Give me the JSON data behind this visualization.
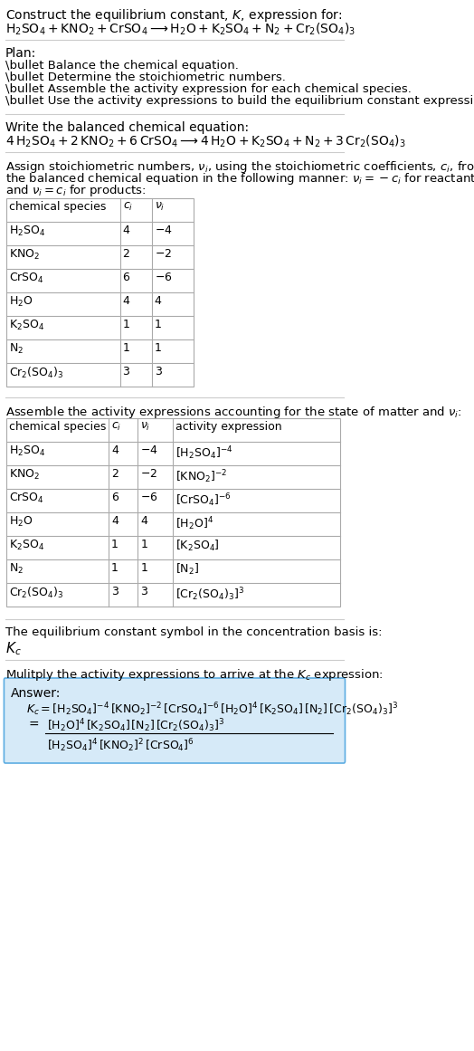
{
  "title_line1": "Construct the equilibrium constant, $K$, expression for:",
  "reaction_unbalanced": "$\\text{H}_2\\text{SO}_4 + \\text{KNO}_2 + \\text{CrSO}_4 \\longrightarrow \\text{H}_2\\text{O} + \\text{K}_2\\text{SO}_4 + \\text{N}_2 + \\text{Cr}_2(\\text{SO}_4)_3$",
  "plan_header": "Plan:",
  "plan_items": [
    "\\bullet Balance the chemical equation.",
    "\\bullet Determine the stoichiometric numbers.",
    "\\bullet Assemble the activity expression for each chemical species.",
    "\\bullet Use the activity expressions to build the equilibrium constant expression."
  ],
  "balanced_header": "Write the balanced chemical equation:",
  "reaction_balanced": "$4\\,\\text{H}_2\\text{SO}_4 + 2\\,\\text{KNO}_2 + 6\\,\\text{CrSO}_4 \\longrightarrow 4\\,\\text{H}_2\\text{O} + \\text{K}_2\\text{SO}_4 + \\text{N}_2 + 3\\,\\text{Cr}_2(\\text{SO}_4)_3$",
  "stoich_intro": "Assign stoichiometric numbers, $\\nu_i$, using the stoichiometric coefficients, $c_i$, from\nthe balanced chemical equation in the following manner: $\\nu_i = -c_i$ for reactants\nand $\\nu_i = c_i$ for products:",
  "table1_headers": [
    "chemical species",
    "$c_i$",
    "$\\nu_i$"
  ],
  "table1_rows": [
    [
      "$\\text{H}_2\\text{SO}_4$",
      "4",
      "$-4$"
    ],
    [
      "$\\text{KNO}_2$",
      "2",
      "$-2$"
    ],
    [
      "$\\text{CrSO}_4$",
      "6",
      "$-6$"
    ],
    [
      "$\\text{H}_2\\text{O}$",
      "4",
      "4"
    ],
    [
      "$\\text{K}_2\\text{SO}_4$",
      "1",
      "1"
    ],
    [
      "$\\text{N}_2$",
      "1",
      "1"
    ],
    [
      "$\\text{Cr}_2(\\text{SO}_4)_3$",
      "3",
      "3"
    ]
  ],
  "activity_intro": "Assemble the activity expressions accounting for the state of matter and $\\nu_i$:",
  "table2_headers": [
    "chemical species",
    "$c_i$",
    "$\\nu_i$",
    "activity expression"
  ],
  "table2_rows": [
    [
      "$\\text{H}_2\\text{SO}_4$",
      "4",
      "$-4$",
      "$[\\text{H}_2\\text{SO}_4]^{-4}$"
    ],
    [
      "$\\text{KNO}_2$",
      "2",
      "$-2$",
      "$[\\text{KNO}_2]^{-2}$"
    ],
    [
      "$\\text{CrSO}_4$",
      "6",
      "$-6$",
      "$[\\text{CrSO}_4]^{-6}$"
    ],
    [
      "$\\text{H}_2\\text{O}$",
      "4",
      "4",
      "$[\\text{H}_2\\text{O}]^4$"
    ],
    [
      "$\\text{K}_2\\text{SO}_4$",
      "1",
      "1",
      "$[\\text{K}_2\\text{SO}_4]$"
    ],
    [
      "$\\text{N}_2$",
      "1",
      "1",
      "$[\\text{N}_2]$"
    ],
    [
      "$\\text{Cr}_2(\\text{SO}_4)_3$",
      "3",
      "3",
      "$[\\text{Cr}_2(\\text{SO}_4)_3]^3$"
    ]
  ],
  "kc_intro": "The equilibrium constant symbol in the concentration basis is:",
  "kc_symbol": "$K_c$",
  "multiply_intro": "Mulitply the activity expressions to arrive at the $K_c$ expression:",
  "answer_label": "Answer:",
  "answer_line1": "$K_c = [\\text{H}_2\\text{SO}_4]^{-4}\\,[\\text{KNO}_2]^{-2}\\,[\\text{CrSO}_4]^{-6}\\,[\\text{H}_2\\text{O}]^4\\,[\\text{K}_2\\text{SO}_4]\\,[\\text{N}_2]\\,[\\text{Cr}_2(\\text{SO}_4)_3]^3$",
  "answer_line2_num": "$[\\text{H}_2\\text{O}]^4\\,[\\text{K}_2\\text{SO}_4]\\,[\\text{N}_2]\\,[\\text{Cr}_2(\\text{SO}_4)_3]^3$",
  "answer_line2_den": "$[\\text{H}_2\\text{SO}_4]^4\\,[\\text{KNO}_2]^2\\,[\\text{CrSO}_4]^6$",
  "bg_color": "#ffffff",
  "table_border_color": "#aaaaaa",
  "answer_box_color": "#d6eaf8",
  "answer_box_border": "#5dade2",
  "text_color": "#000000",
  "font_size": 9.5
}
